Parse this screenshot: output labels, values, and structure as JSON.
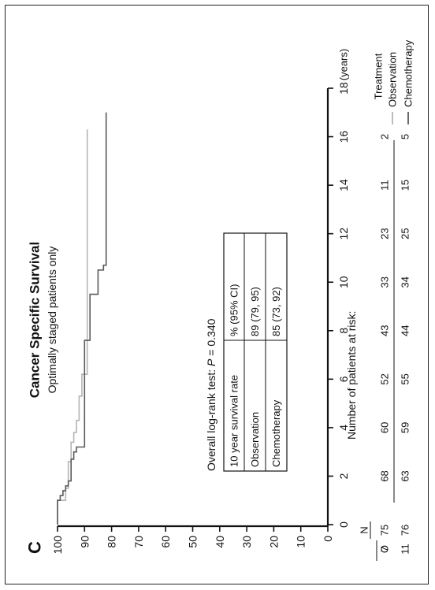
{
  "chart_data": {
    "type": "line",
    "subtype": "kaplan-meier",
    "orientation": "rotated-90-ccw",
    "panel_letter": "C",
    "title": "Cancer Specific Survival",
    "subtitle": "Optimally staged patients only",
    "xlabel": "(years)",
    "xlim": [
      0,
      18
    ],
    "x_ticks": [
      0,
      2,
      4,
      6,
      8,
      10,
      12,
      14,
      16,
      18
    ],
    "ylim": [
      0,
      100
    ],
    "y_ticks": [
      0,
      10,
      20,
      30,
      40,
      50,
      60,
      70,
      80,
      90,
      100
    ],
    "grid": false,
    "legend": {
      "title": "Treatment",
      "placement": "right",
      "entries": [
        "Observation",
        "Chemotherapy"
      ]
    },
    "series": [
      {
        "name": "Observation",
        "color": "#b4b4b4",
        "x": [
          0,
          0.9,
          1.0,
          1.5,
          2.6,
          3.4,
          3.8,
          4.3,
          5.3,
          6.2,
          15.9,
          16.3
        ],
        "y": [
          100,
          100,
          97,
          96,
          95,
          94,
          93,
          92,
          91,
          89,
          89,
          89
        ]
      },
      {
        "name": "Chemotherapy",
        "color": "#5a5a5a",
        "x": [
          0,
          0.9,
          1.0,
          1.2,
          1.4,
          1.6,
          1.8,
          2.7,
          3.0,
          3.2,
          7.6,
          9.5,
          10.5,
          10.7,
          17.0
        ],
        "y": [
          100,
          100,
          99,
          98,
          97,
          96,
          95,
          94,
          93,
          90,
          88,
          85,
          83,
          82,
          82
        ]
      }
    ],
    "annotation": {
      "logrank_prefix": "Overall log-rank test: ",
      "logrank_p": "P",
      "logrank_suffix": " = 0.340",
      "table": {
        "header": [
          "10 year survival rate",
          "% (95% CI)"
        ],
        "rows": [
          [
            "Observation",
            "89 (79, 95)"
          ],
          [
            "Chemotherapy",
            "85 (73, 92)"
          ]
        ]
      }
    },
    "risk_table": {
      "label": "Number of patients at risk:",
      "col_o": "O",
      "col_n": "N",
      "at_times": [
        2,
        4,
        6,
        8,
        10,
        12,
        14,
        16
      ],
      "rows": [
        {
          "name": "Observation",
          "o": "7",
          "n": "75",
          "values": [
            "68",
            "60",
            "52",
            "43",
            "33",
            "23",
            "11",
            "2"
          ]
        },
        {
          "name": "Chemotherapy",
          "o": "11",
          "n": "76",
          "values": [
            "63",
            "59",
            "55",
            "44",
            "34",
            "25",
            "15",
            "5"
          ]
        }
      ]
    }
  }
}
